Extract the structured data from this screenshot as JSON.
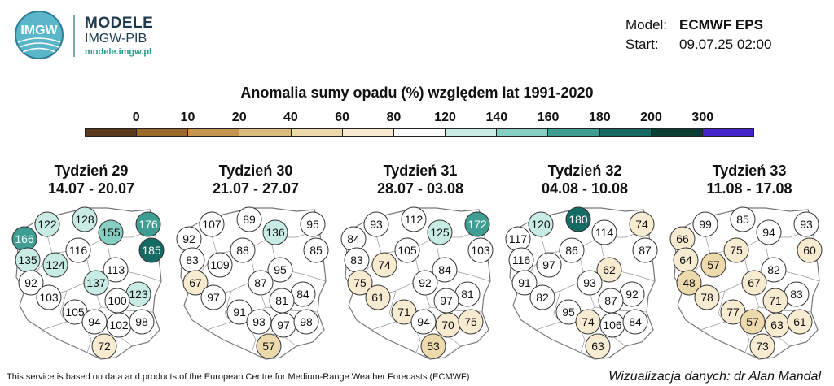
{
  "header": {
    "logo_text": "IMGW",
    "brand_title": "MODELE",
    "brand_subtitle": "IMGW-PIB",
    "brand_url": "modele.imgw.pl",
    "model_key": "Model:",
    "model_value": "ECMWF EPS",
    "start_key": "Start:",
    "start_value": "09.07.25 02:00"
  },
  "legend": {
    "title": "Anomalia sumy opadu (%) względem lat 1991-2020",
    "tick_labels": [
      "0",
      "10",
      "20",
      "40",
      "60",
      "80",
      "120",
      "140",
      "160",
      "180",
      "200",
      "300"
    ],
    "colors": [
      "#5a3a1a",
      "#9b6a2a",
      "#c59550",
      "#dcbc7e",
      "#ecd9ac",
      "#f7ecd2",
      "#ffffff",
      "#c8ece4",
      "#86cfc2",
      "#3f9e93",
      "#156b63",
      "#0b3d34",
      "#4424cc"
    ]
  },
  "chart_data": {
    "type": "map",
    "panels": [
      {
        "week": "Tydzień 29",
        "dates": "14.07 - 20.07",
        "values": [
          166,
          122,
          128,
          155,
          176,
          185,
          135,
          116,
          124,
          113,
          92,
          137,
          123,
          103,
          100,
          105,
          94,
          102,
          98,
          72
        ]
      },
      {
        "week": "Tydzień 30",
        "dates": "21.07 - 27.07",
        "values": [
          92,
          107,
          89,
          136,
          95,
          85,
          83,
          88,
          109,
          95,
          67,
          87,
          84,
          97,
          81,
          91,
          93,
          97,
          98,
          57
        ]
      },
      {
        "week": "Tydzień 31",
        "dates": "28.07 - 03.08",
        "values": [
          84,
          93,
          112,
          125,
          172,
          103,
          83,
          105,
          74,
          84,
          75,
          92,
          81,
          61,
          97,
          71,
          94,
          70,
          75,
          53
        ]
      },
      {
        "week": "Tydzień 32",
        "dates": "04.08 - 10.08",
        "values": [
          117,
          120,
          180,
          114,
          74,
          87,
          116,
          86,
          97,
          62,
          91,
          93,
          92,
          82,
          87,
          95,
          74,
          106,
          84,
          63
        ]
      },
      {
        "week": "Tydzień 33",
        "dates": "11.08 - 17.08",
        "values": [
          66,
          99,
          85,
          94,
          93,
          60,
          64,
          75,
          57,
          82,
          48,
          67,
          83,
          78,
          71,
          77,
          57,
          63,
          61,
          73
        ]
      }
    ]
  },
  "footer": {
    "source": "This service is based on data and products of the European Centre for Medium-Range Weather Forecasts (ECMWF)",
    "credit": "Wizualizacja danych: dr Alan Mandal"
  }
}
